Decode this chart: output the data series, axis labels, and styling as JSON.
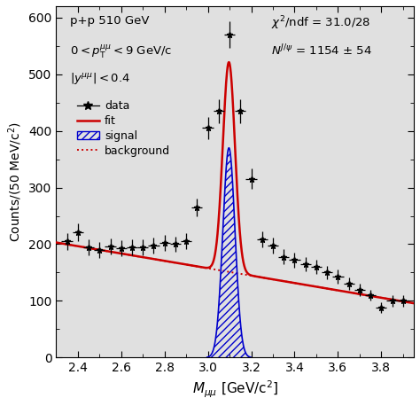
{
  "xlim": [
    2.3,
    3.95
  ],
  "ylim": [
    0,
    620
  ],
  "yticks": [
    0,
    100,
    200,
    300,
    400,
    500,
    600
  ],
  "xticks": [
    2.4,
    2.6,
    2.8,
    3.0,
    3.2,
    3.4,
    3.6,
    3.8
  ],
  "data_x": [
    2.35,
    2.4,
    2.45,
    2.5,
    2.55,
    2.6,
    2.65,
    2.7,
    2.75,
    2.8,
    2.85,
    2.9,
    2.95,
    3.0,
    3.05,
    3.1,
    3.15,
    3.2,
    3.25,
    3.3,
    3.35,
    3.4,
    3.45,
    3.5,
    3.55,
    3.6,
    3.65,
    3.7,
    3.75,
    3.8,
    3.85,
    3.9
  ],
  "data_y": [
    205,
    221,
    195,
    190,
    196,
    193,
    195,
    195,
    197,
    202,
    200,
    205,
    265,
    405,
    435,
    570,
    435,
    315,
    208,
    198,
    178,
    172,
    165,
    160,
    150,
    143,
    130,
    120,
    110,
    88,
    100,
    100
  ],
  "data_yerr": [
    15,
    15,
    14,
    14,
    14,
    14,
    14,
    14,
    14,
    14,
    14,
    14,
    16,
    20,
    21,
    24,
    21,
    18,
    14,
    14,
    13,
    13,
    13,
    13,
    12,
    12,
    11,
    11,
    10,
    9,
    10,
    10
  ],
  "jpsi_mass": 3.097,
  "jpsi_sigma": 0.028,
  "jpsi_amplitude": 370.0,
  "bg_p0": 203.0,
  "bg_slope": -65.0,
  "bin_width": 0.05,
  "fit_color": "#cc0000",
  "bg_color": "#cc0000",
  "signal_color": "#0000cc",
  "ax_facecolor": "#e0e0e0"
}
